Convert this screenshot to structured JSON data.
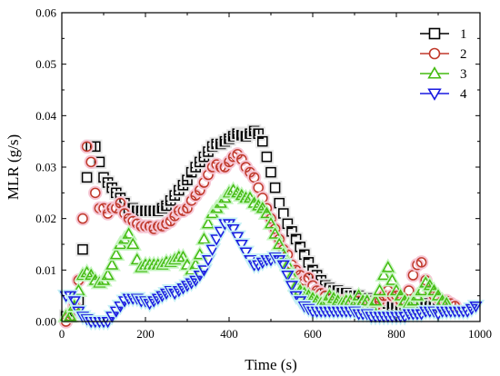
{
  "chart_data": {
    "type": "scatter",
    "title": "",
    "xlabel": "Time (s)",
    "ylabel": "MLR (g/s)",
    "xlim": [
      0,
      1000
    ],
    "ylim": [
      0,
      0.06
    ],
    "xticks": [
      0,
      200,
      400,
      600,
      800,
      1000
    ],
    "yticks": [
      0.0,
      0.01,
      0.02,
      0.03,
      0.04,
      0.05,
      0.06
    ],
    "ytick_labels": [
      "0.00",
      "0.01",
      "0.02",
      "0.03",
      "0.04",
      "0.05",
      "0.06"
    ],
    "grid": false,
    "legend_position": "top-right",
    "series": [
      {
        "name": "1",
        "marker": "square",
        "color": "#000000",
        "halo": "#e8e8e8",
        "x": [
          10,
          20,
          30,
          40,
          50,
          60,
          70,
          80,
          90,
          100,
          110,
          120,
          130,
          140,
          150,
          160,
          170,
          180,
          190,
          200,
          210,
          220,
          230,
          240,
          250,
          260,
          270,
          280,
          290,
          300,
          310,
          320,
          330,
          340,
          350,
          360,
          370,
          380,
          390,
          400,
          410,
          420,
          430,
          440,
          450,
          460,
          470,
          480,
          490,
          500,
          510,
          520,
          530,
          540,
          550,
          560,
          570,
          580,
          590,
          600,
          610,
          620,
          630,
          640,
          650,
          660,
          670,
          680,
          690,
          700,
          710,
          720,
          730,
          740,
          750,
          760,
          770,
          780,
          790,
          800,
          810,
          820,
          830,
          840,
          850,
          860,
          870,
          880,
          890,
          900
        ],
        "y": [
          0.001,
          0.001,
          0.002,
          0.004,
          0.014,
          0.028,
          0.034,
          0.034,
          0.031,
          0.028,
          0.027,
          0.026,
          0.025,
          0.024,
          0.023,
          0.022,
          0.022,
          0.0215,
          0.0215,
          0.0215,
          0.0215,
          0.0215,
          0.0215,
          0.022,
          0.0225,
          0.0235,
          0.0245,
          0.0255,
          0.0265,
          0.0275,
          0.029,
          0.03,
          0.031,
          0.032,
          0.033,
          0.034,
          0.0345,
          0.0345,
          0.035,
          0.0355,
          0.036,
          0.0365,
          0.0362,
          0.036,
          0.0365,
          0.037,
          0.0365,
          0.035,
          0.032,
          0.029,
          0.026,
          0.023,
          0.021,
          0.019,
          0.0175,
          0.016,
          0.0145,
          0.013,
          0.0115,
          0.01,
          0.009,
          0.008,
          0.007,
          0.0065,
          0.006,
          0.006,
          0.0055,
          0.0055,
          0.005,
          0.005,
          0.005,
          0.0045,
          0.0045,
          0.004,
          0.004,
          0.004,
          0.0035,
          0.0035,
          0.003,
          0.003,
          0.003,
          0.003,
          0.003,
          0.0025,
          0.003,
          0.003,
          0.0035,
          0.003,
          0.003,
          0.003
        ]
      },
      {
        "name": "2",
        "marker": "circle",
        "color": "#c0392b",
        "halo": "#f6c6d4",
        "x": [
          10,
          20,
          30,
          40,
          50,
          60,
          70,
          80,
          90,
          100,
          110,
          120,
          130,
          140,
          150,
          160,
          170,
          180,
          190,
          200,
          210,
          220,
          230,
          240,
          250,
          260,
          270,
          280,
          290,
          300,
          310,
          320,
          330,
          340,
          350,
          360,
          370,
          380,
          390,
          400,
          410,
          420,
          430,
          440,
          450,
          460,
          470,
          480,
          490,
          500,
          510,
          520,
          530,
          540,
          550,
          560,
          570,
          580,
          590,
          600,
          610,
          620,
          630,
          640,
          650,
          660,
          670,
          680,
          690,
          700,
          710,
          720,
          730,
          740,
          750,
          760,
          770,
          780,
          790,
          800,
          810,
          820,
          830,
          840,
          850,
          860,
          870,
          880,
          890,
          900,
          910,
          920,
          930,
          940
        ],
        "y": [
          0.0,
          0.001,
          0.003,
          0.008,
          0.02,
          0.034,
          0.031,
          0.025,
          0.022,
          0.022,
          0.021,
          0.022,
          0.022,
          0.023,
          0.021,
          0.02,
          0.0195,
          0.019,
          0.0185,
          0.0185,
          0.0185,
          0.018,
          0.0185,
          0.0185,
          0.019,
          0.0195,
          0.0205,
          0.0215,
          0.0215,
          0.022,
          0.0235,
          0.0245,
          0.0255,
          0.027,
          0.0285,
          0.03,
          0.0305,
          0.03,
          0.03,
          0.031,
          0.032,
          0.0325,
          0.0315,
          0.03,
          0.029,
          0.028,
          0.026,
          0.024,
          0.022,
          0.02,
          0.018,
          0.016,
          0.014,
          0.013,
          0.011,
          0.01,
          0.009,
          0.008,
          0.0085,
          0.007,
          0.006,
          0.0055,
          0.005,
          0.0045,
          0.004,
          0.004,
          0.004,
          0.0035,
          0.0035,
          0.003,
          0.004,
          0.003,
          0.003,
          0.0035,
          0.003,
          0.004,
          0.005,
          0.006,
          0.005,
          0.005,
          0.004,
          0.004,
          0.006,
          0.009,
          0.011,
          0.0115,
          0.008,
          0.006,
          0.005,
          0.0045,
          0.004,
          0.004,
          0.0035,
          0.003
        ]
      },
      {
        "name": "3",
        "marker": "triangle-up",
        "color": "#44bb11",
        "halo": "#c6f5c0",
        "x": [
          10,
          20,
          30,
          40,
          50,
          60,
          70,
          80,
          90,
          100,
          110,
          120,
          130,
          140,
          150,
          160,
          170,
          180,
          190,
          200,
          210,
          220,
          230,
          240,
          250,
          260,
          270,
          280,
          290,
          300,
          310,
          320,
          330,
          340,
          350,
          360,
          370,
          380,
          390,
          400,
          410,
          420,
          430,
          440,
          450,
          460,
          470,
          480,
          490,
          500,
          510,
          520,
          530,
          540,
          550,
          560,
          570,
          580,
          590,
          600,
          610,
          620,
          630,
          640,
          650,
          660,
          670,
          680,
          690,
          700,
          710,
          720,
          730,
          740,
          750,
          760,
          770,
          780,
          790,
          800,
          810,
          820,
          830,
          840,
          850,
          860,
          870,
          880,
          890,
          900,
          910,
          920
        ],
        "y": [
          0.001,
          0.001,
          0.003,
          0.006,
          0.009,
          0.0095,
          0.009,
          0.008,
          0.0075,
          0.008,
          0.009,
          0.011,
          0.013,
          0.015,
          0.016,
          0.017,
          0.015,
          0.012,
          0.0105,
          0.011,
          0.011,
          0.011,
          0.011,
          0.011,
          0.0115,
          0.0115,
          0.012,
          0.0125,
          0.0125,
          0.011,
          0.01,
          0.011,
          0.013,
          0.016,
          0.019,
          0.021,
          0.022,
          0.023,
          0.024,
          0.025,
          0.0255,
          0.025,
          0.0245,
          0.024,
          0.024,
          0.023,
          0.0225,
          0.022,
          0.021,
          0.019,
          0.017,
          0.015,
          0.013,
          0.011,
          0.009,
          0.007,
          0.006,
          0.0055,
          0.005,
          0.0045,
          0.004,
          0.0035,
          0.004,
          0.005,
          0.0045,
          0.004,
          0.0035,
          0.004,
          0.004,
          0.0035,
          0.005,
          0.004,
          0.004,
          0.003,
          0.004,
          0.006,
          0.009,
          0.0105,
          0.008,
          0.006,
          0.005,
          0.004,
          0.0035,
          0.004,
          0.005,
          0.006,
          0.0075,
          0.007,
          0.006,
          0.005,
          0.004,
          0.0035
        ]
      },
      {
        "name": "4",
        "marker": "triangle-down",
        "color": "#1a1ae0",
        "halo": "#c6f0f5",
        "x": [
          10,
          20,
          30,
          40,
          50,
          60,
          70,
          80,
          90,
          100,
          110,
          120,
          130,
          140,
          150,
          160,
          170,
          180,
          190,
          200,
          210,
          220,
          230,
          240,
          250,
          260,
          270,
          280,
          290,
          300,
          310,
          320,
          330,
          340,
          350,
          360,
          370,
          380,
          390,
          400,
          410,
          420,
          430,
          440,
          450,
          460,
          470,
          480,
          490,
          500,
          510,
          520,
          530,
          540,
          550,
          560,
          570,
          580,
          590,
          600,
          610,
          620,
          630,
          640,
          650,
          660,
          670,
          680,
          690,
          700,
          710,
          720,
          730,
          740,
          750,
          760,
          770,
          780,
          790,
          800,
          810,
          820,
          830,
          840,
          850,
          860,
          870,
          880,
          890,
          900,
          910,
          920,
          930,
          940,
          950,
          960,
          970,
          980,
          990
        ],
        "y": [
          0.005,
          0.005,
          0.004,
          0.002,
          0.001,
          0.0005,
          0.0,
          0.0,
          0.0,
          0.0,
          0.0,
          0.001,
          0.002,
          0.003,
          0.004,
          0.0045,
          0.0045,
          0.0045,
          0.004,
          0.004,
          0.0035,
          0.004,
          0.0045,
          0.005,
          0.0055,
          0.006,
          0.0055,
          0.006,
          0.0065,
          0.007,
          0.0075,
          0.008,
          0.009,
          0.01,
          0.012,
          0.014,
          0.016,
          0.0175,
          0.019,
          0.019,
          0.018,
          0.0165,
          0.015,
          0.0135,
          0.012,
          0.011,
          0.011,
          0.0115,
          0.012,
          0.012,
          0.0125,
          0.012,
          0.011,
          0.009,
          0.007,
          0.005,
          0.004,
          0.003,
          0.0025,
          0.002,
          0.002,
          0.002,
          0.002,
          0.002,
          0.002,
          0.002,
          0.002,
          0.002,
          0.002,
          0.002,
          0.0015,
          0.0015,
          0.0015,
          0.001,
          0.001,
          0.001,
          0.001,
          0.001,
          0.001,
          0.001,
          0.001,
          0.001,
          0.0015,
          0.0015,
          0.0015,
          0.0015,
          0.002,
          0.002,
          0.002,
          0.0015,
          0.002,
          0.002,
          0.002,
          0.002,
          0.002,
          0.002,
          0.002,
          0.0025,
          0.003
        ]
      }
    ]
  }
}
